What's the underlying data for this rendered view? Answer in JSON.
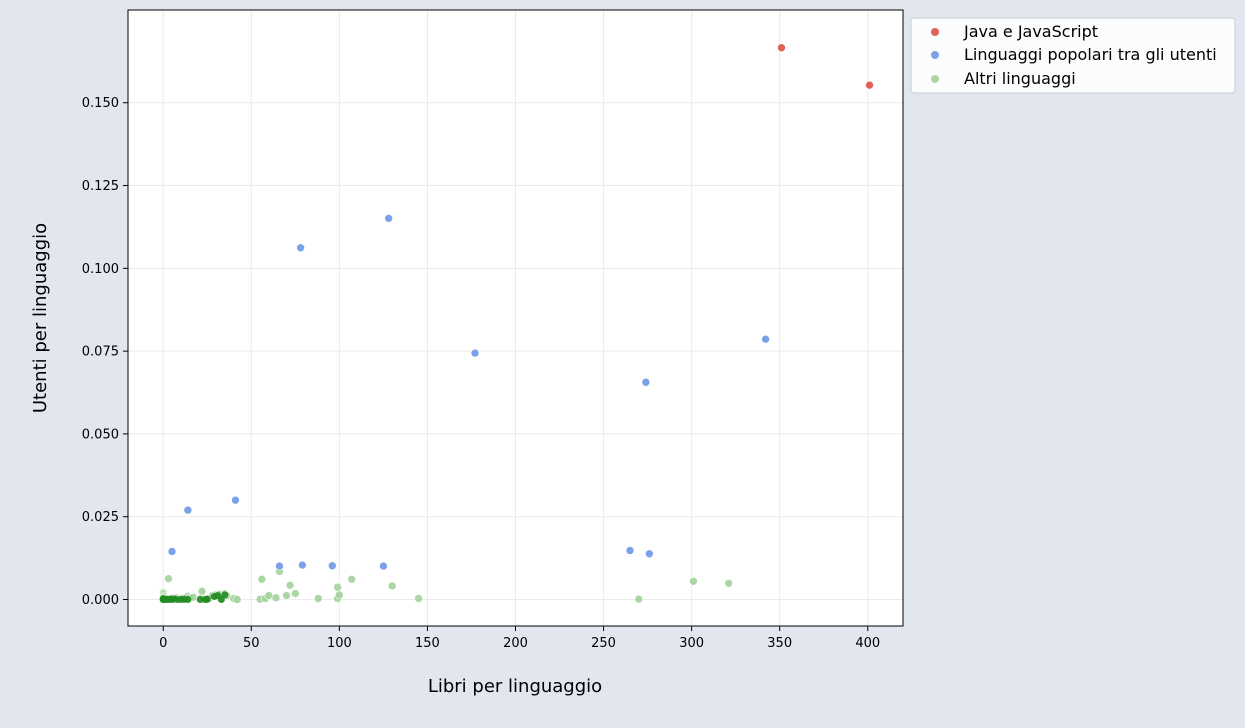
{
  "chart_data": {
    "type": "scatter",
    "xlabel": "Libri per linguaggio",
    "ylabel": "Utenti per linguaggio",
    "xlim": [
      -20,
      420
    ],
    "ylim": [
      -0.008,
      0.178
    ],
    "xticks": [
      0,
      50,
      100,
      150,
      200,
      250,
      300,
      350,
      400
    ],
    "yticks": [
      0.0,
      0.025,
      0.05,
      0.075,
      0.1,
      0.125,
      0.15
    ],
    "ytick_labels": [
      "0.000",
      "0.025",
      "0.050",
      "0.075",
      "0.100",
      "0.125",
      "0.150"
    ],
    "grid": true,
    "legend_position": "outside-top-right",
    "series": [
      {
        "name": "Java e JavaScript",
        "color": "#e0605a",
        "opacity": 1.0,
        "points": [
          [
            351,
            0.1666
          ],
          [
            401,
            0.1553
          ]
        ]
      },
      {
        "name": "Linguaggi popolari tra gli utenti",
        "color": "#7ba2e8",
        "opacity": 1.0,
        "points": [
          [
            128,
            0.1151
          ],
          [
            78,
            0.1062
          ],
          [
            342,
            0.0786
          ],
          [
            177,
            0.0744
          ],
          [
            274,
            0.0656
          ],
          [
            41,
            0.03
          ],
          [
            14,
            0.027
          ],
          [
            5,
            0.0145
          ],
          [
            265,
            0.0148
          ],
          [
            276,
            0.0138
          ],
          [
            66,
            0.0101
          ],
          [
            79,
            0.0104
          ],
          [
            96,
            0.0102
          ],
          [
            125,
            0.0101
          ]
        ]
      },
      {
        "name": "Altri linguaggi",
        "color": "#9fcf97",
        "opacity": 0.85,
        "points": [
          [
            0,
            0.002
          ],
          [
            0,
            0.0015
          ],
          [
            0,
            0.001
          ],
          [
            0,
            0.0005
          ],
          [
            0,
            0.0002
          ],
          [
            0,
            0.0
          ],
          [
            1,
            0.0001
          ],
          [
            2,
            0.0
          ],
          [
            3,
            0.0063
          ],
          [
            4,
            0.0002
          ],
          [
            5,
            0.0004
          ],
          [
            6,
            0.0001
          ],
          [
            7,
            0.0003
          ],
          [
            8,
            0.0005
          ],
          [
            9,
            0.0002
          ],
          [
            10,
            0.0001
          ],
          [
            11,
            0.0003
          ],
          [
            12,
            0.0
          ],
          [
            14,
            0.001
          ],
          [
            15,
            0.0005
          ],
          [
            17,
            0.0007
          ],
          [
            22,
            0.0025
          ],
          [
            21,
            0.0002
          ],
          [
            23,
            0.0001
          ],
          [
            25,
            0.0
          ],
          [
            26,
            0.0003
          ],
          [
            28,
            0.0012
          ],
          [
            30,
            0.0014
          ],
          [
            31,
            0.001
          ],
          [
            32,
            0.0016
          ],
          [
            33,
            0.0002
          ],
          [
            35,
            0.0017
          ],
          [
            36,
            0.0012
          ],
          [
            40,
            0.0003
          ],
          [
            42,
            0.0
          ],
          [
            55,
            0.0001
          ],
          [
            56,
            0.0061
          ],
          [
            58,
            0.0003
          ],
          [
            60,
            0.0012
          ],
          [
            64,
            0.0005
          ],
          [
            66,
            0.0085
          ],
          [
            70,
            0.0012
          ],
          [
            72,
            0.0043
          ],
          [
            75,
            0.0018
          ],
          [
            88,
            0.0003
          ],
          [
            99,
            0.0037
          ],
          [
            99,
            0.0003
          ],
          [
            100,
            0.0014
          ],
          [
            107,
            0.0061
          ],
          [
            130,
            0.0041
          ],
          [
            145,
            0.0003
          ],
          [
            270,
            0.0001
          ],
          [
            301,
            0.0055
          ],
          [
            321,
            0.0049
          ]
        ]
      }
    ],
    "highlight_points": [
      [
        0,
        0.0
      ],
      [
        0,
        0.0001
      ],
      [
        0,
        0.0003
      ],
      [
        1,
        0.0
      ],
      [
        2,
        0.0001
      ],
      [
        3,
        0.0
      ],
      [
        4,
        0.0001
      ],
      [
        5,
        0.0
      ],
      [
        6,
        0.0002
      ],
      [
        8,
        0.0
      ],
      [
        10,
        0.0
      ],
      [
        12,
        0.0001
      ],
      [
        14,
        0.0
      ],
      [
        21,
        0.0
      ],
      [
        24,
        0.0
      ],
      [
        25,
        0.0001
      ],
      [
        29,
        0.0009
      ],
      [
        31,
        0.0012
      ],
      [
        33,
        0.0
      ],
      [
        35,
        0.0014
      ]
    ],
    "highlight_color": "#228b22"
  }
}
